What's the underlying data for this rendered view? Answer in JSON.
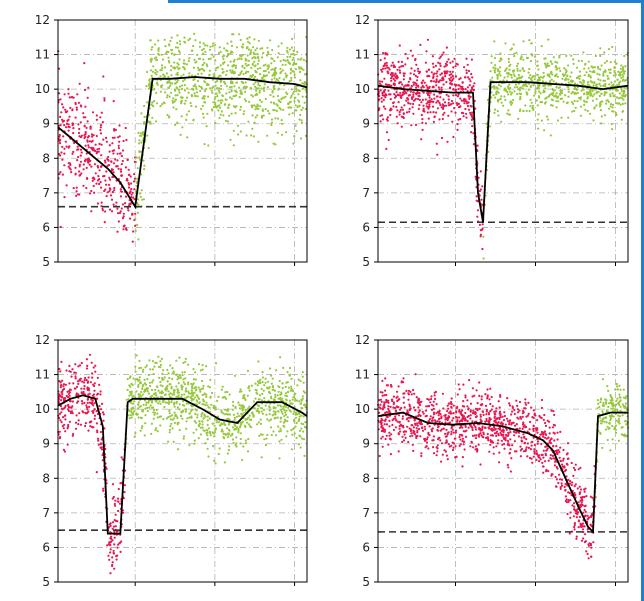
{
  "colors": {
    "fail": "#e8174e",
    "ok": "#96c83c",
    "mean": "#000000",
    "threshold": "#333333",
    "grid": "#b0b0b0"
  },
  "chart_data": [
    {
      "type": "scatter",
      "ylim": [
        5,
        12
      ],
      "xlim": [
        0,
        1
      ],
      "yticks": [
        "5",
        "6",
        "7",
        "8",
        "9",
        "10",
        "11",
        "12"
      ],
      "grid": true,
      "threshold": 6.6,
      "drop_at": 0.31,
      "scatter_spread": 0.9,
      "mean_line": {
        "x": [
          0,
          0.05,
          0.1,
          0.15,
          0.2,
          0.25,
          0.31,
          0.38,
          0.45,
          0.55,
          0.65,
          0.75,
          0.85,
          0.95,
          1.0
        ],
        "y": [
          8.9,
          8.6,
          8.3,
          8.0,
          7.7,
          7.3,
          6.6,
          10.3,
          10.3,
          10.35,
          10.3,
          10.3,
          10.2,
          10.15,
          10.05
        ]
      }
    },
    {
      "type": "scatter",
      "ylim": [
        5,
        12
      ],
      "xlim": [
        0,
        1
      ],
      "yticks": [
        "5",
        "6",
        "7",
        "8",
        "9",
        "10",
        "11",
        "12"
      ],
      "grid": true,
      "threshold": 6.15,
      "drop_at": 0.42,
      "scatter_spread": 0.6,
      "mean_line": {
        "x": [
          0,
          0.1,
          0.2,
          0.3,
          0.38,
          0.4,
          0.42,
          0.45,
          0.5,
          0.6,
          0.7,
          0.8,
          0.9,
          1.0
        ],
        "y": [
          10.1,
          10.0,
          9.95,
          9.9,
          9.9,
          7.0,
          6.15,
          10.2,
          10.2,
          10.2,
          10.15,
          10.1,
          10.0,
          10.1
        ]
      }
    },
    {
      "type": "scatter",
      "ylim": [
        5,
        12
      ],
      "xlim": [
        0,
        1
      ],
      "yticks": [
        "5",
        "6",
        "7",
        "8",
        "9",
        "10",
        "11",
        "12"
      ],
      "grid": true,
      "threshold": 6.5,
      "drop_at": 0.2,
      "scatter_spread": 0.7,
      "mean_line": {
        "x": [
          0,
          0.05,
          0.1,
          0.15,
          0.18,
          0.2,
          0.25,
          0.28,
          0.3,
          0.4,
          0.5,
          0.58,
          0.65,
          0.72,
          0.8,
          0.9,
          0.98,
          1.0
        ],
        "y": [
          10.1,
          10.3,
          10.4,
          10.3,
          9.5,
          6.4,
          6.4,
          10.2,
          10.3,
          10.3,
          10.3,
          10.0,
          9.7,
          9.6,
          10.2,
          10.2,
          9.9,
          9.8
        ]
      }
    },
    {
      "type": "scatter",
      "ylim": [
        5,
        12
      ],
      "xlim": [
        0,
        1
      ],
      "yticks": [
        "5",
        "6",
        "7",
        "8",
        "9",
        "10",
        "11",
        "12"
      ],
      "grid": true,
      "threshold": 6.45,
      "drop_at": 0.86,
      "scatter_spread": 0.5,
      "mean_line": {
        "x": [
          0,
          0.1,
          0.2,
          0.3,
          0.4,
          0.5,
          0.6,
          0.66,
          0.7,
          0.75,
          0.8,
          0.84,
          0.86,
          0.88,
          0.93,
          1.0
        ],
        "y": [
          9.8,
          9.9,
          9.6,
          9.55,
          9.6,
          9.5,
          9.3,
          9.1,
          8.8,
          8.0,
          7.2,
          6.6,
          6.45,
          9.8,
          9.9,
          9.9
        ]
      }
    }
  ]
}
